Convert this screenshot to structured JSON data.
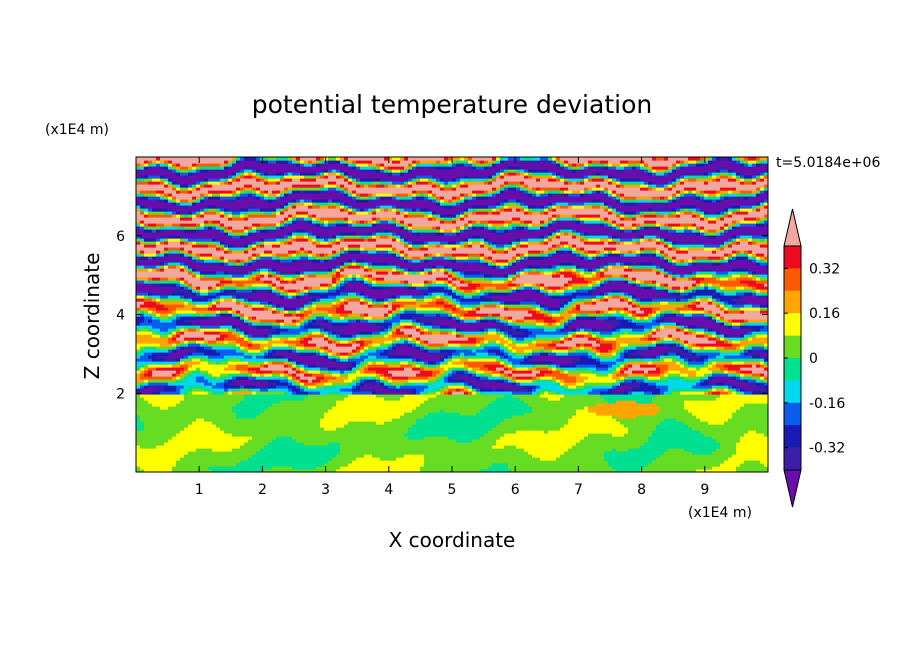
{
  "chart_data": {
    "type": "heatmap",
    "title": "potential temperature deviation",
    "xlabel": "X coordinate",
    "ylabel": "Z coordinate",
    "x_unit": "(x1E4 m)",
    "y_unit": "(x1E4 m)",
    "time_label": "t=5.0184e+06",
    "xlim": [
      0,
      10
    ],
    "ylim": [
      0,
      8
    ],
    "x_ticks": [
      1,
      2,
      3,
      4,
      5,
      6,
      7,
      8,
      9
    ],
    "y_ticks": [
      2,
      4,
      6
    ],
    "grid": false,
    "colorbar": {
      "labels": [
        "0.32",
        "0.16",
        "0",
        "-0.16",
        "-0.32"
      ],
      "label_values": [
        0.32,
        0.16,
        0,
        -0.16,
        -0.32
      ],
      "levels": [
        -0.4,
        -0.32,
        -0.24,
        -0.16,
        -0.08,
        0,
        0.08,
        0.16,
        0.24,
        0.32,
        0.4
      ],
      "colors": [
        "#6a0dad",
        "#3c1fa8",
        "#1a1ab4",
        "#0a5cf0",
        "#00d8f0",
        "#00e090",
        "#66dd22",
        "#ffff00",
        "#ffa500",
        "#ff5a00",
        "#f00a1e",
        "#f0a8a0"
      ],
      "extend": "both"
    },
    "description_regions": [
      {
        "z_range": [
          0,
          2
        ],
        "dominant_values": [
          0,
          0.08
        ]
      },
      {
        "z_range": [
          2,
          5
        ],
        "dominant_values": [
          -0.4,
          -0.32,
          0,
          0.16,
          0.4
        ]
      },
      {
        "z_range": [
          5,
          8
        ],
        "dominant_values": [
          -0.4,
          0.4
        ]
      }
    ]
  }
}
